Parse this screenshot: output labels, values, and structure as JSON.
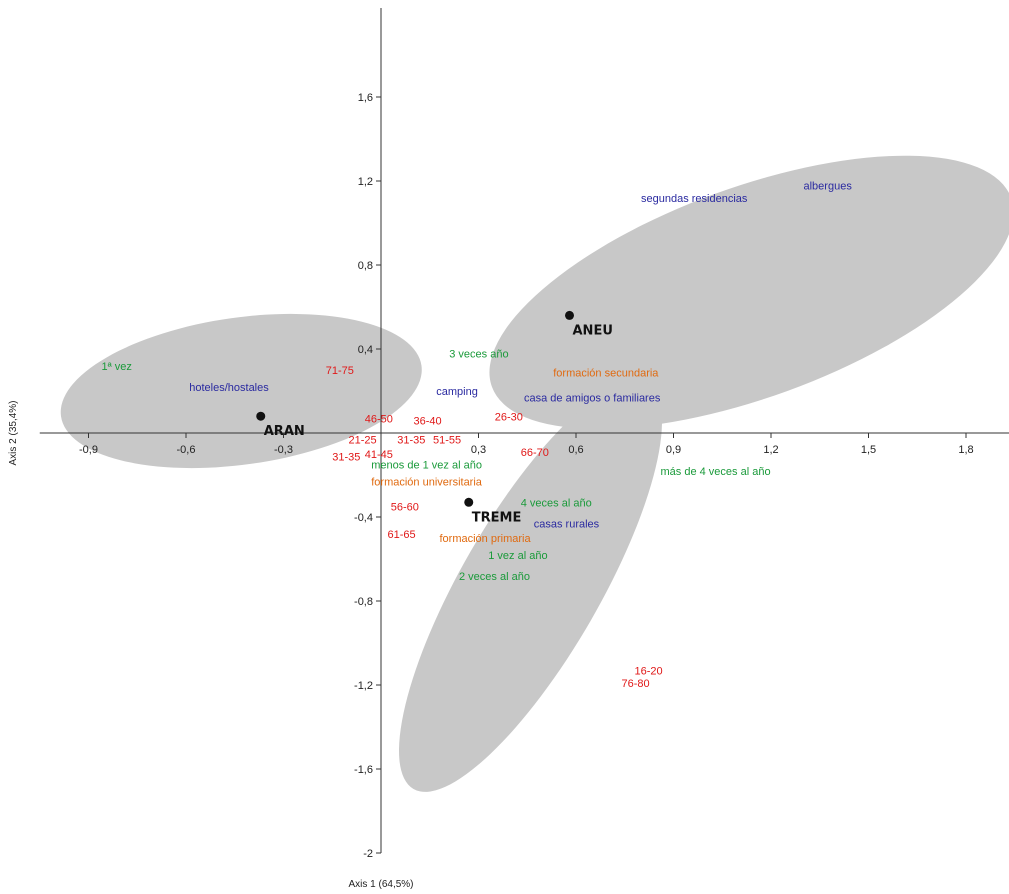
{
  "chart_data": {
    "type": "scatter",
    "title": "",
    "xlabel": "Axis 1 (64,5%)",
    "ylabel": "Axis 2 (35,4%)",
    "xlim": [
      -1.05,
      2.0
    ],
    "ylim": [
      -2.0,
      2.0
    ],
    "x_ticks": [
      {
        "v": -0.9,
        "label": "-0,9"
      },
      {
        "v": -0.6,
        "label": "-0,6"
      },
      {
        "v": -0.3,
        "label": "-0,3"
      },
      {
        "v": 0.3,
        "label": "0,3"
      },
      {
        "v": 0.6,
        "label": "0,6"
      },
      {
        "v": 0.9,
        "label": "0,9"
      },
      {
        "v": 1.2,
        "label": "1,2"
      },
      {
        "v": 1.5,
        "label": "1,5"
      },
      {
        "v": 1.8,
        "label": "1,8"
      }
    ],
    "y_ticks": [
      {
        "v": 1.6,
        "label": "1,6"
      },
      {
        "v": 1.2,
        "label": "1,2"
      },
      {
        "v": 0.8,
        "label": "0,8"
      },
      {
        "v": 0.4,
        "label": "0,4"
      },
      {
        "v": -0.4,
        "label": "-0,4"
      },
      {
        "v": -0.8,
        "label": "-0,8"
      },
      {
        "v": -1.2,
        "label": "-1,2"
      },
      {
        "v": -1.6,
        "label": "-1,6"
      },
      {
        "v": -2,
        "label": "-2"
      }
    ],
    "colors": {
      "frequency": "#1a9a3a",
      "accommodation": "#2a2aa0",
      "education": "#e06a10",
      "age": "#e01818",
      "group": "#111111",
      "ellipse": "#c8c8c8"
    },
    "groups": [
      {
        "label": "ANEU",
        "x": 0.58,
        "y": 0.56
      },
      {
        "label": "ARAN",
        "x": -0.37,
        "y": 0.08
      },
      {
        "label": "TREME",
        "x": 0.27,
        "y": -0.33
      }
    ],
    "ellipses": [
      {
        "cx": -0.43,
        "cy": 0.2,
        "rx": 0.56,
        "ry": 0.35,
        "angle": -8
      },
      {
        "cx": 1.14,
        "cy": 0.67,
        "rx": 0.85,
        "ry": 0.5,
        "angle": -20
      },
      {
        "cx": 0.46,
        "cy": -0.73,
        "rx": 0.72,
        "ry": 0.33,
        "angle": -60
      }
    ],
    "points": [
      {
        "label": "1ª vez",
        "x": -0.86,
        "y": 0.3,
        "cat": "frequency"
      },
      {
        "label": "3 veces año",
        "x": 0.21,
        "y": 0.36,
        "cat": "frequency"
      },
      {
        "label": "menos de 1 vez al año",
        "x": -0.03,
        "y": -0.17,
        "cat": "frequency"
      },
      {
        "label": "más de 4 veces al año",
        "x": 0.86,
        "y": -0.2,
        "cat": "frequency"
      },
      {
        "label": "4 veces al año",
        "x": 0.43,
        "y": -0.35,
        "cat": "frequency"
      },
      {
        "label": "1 vez al año",
        "x": 0.33,
        "y": -0.6,
        "cat": "frequency"
      },
      {
        "label": "2 veces al año",
        "x": 0.24,
        "y": -0.7,
        "cat": "frequency"
      },
      {
        "label": "segundas residencias",
        "x": 0.8,
        "y": 1.1,
        "cat": "accommodation"
      },
      {
        "label": "albergues",
        "x": 1.3,
        "y": 1.16,
        "cat": "accommodation"
      },
      {
        "label": "hoteles/hostales",
        "x": -0.59,
        "y": 0.2,
        "cat": "accommodation"
      },
      {
        "label": "camping",
        "x": 0.17,
        "y": 0.18,
        "cat": "accommodation"
      },
      {
        "label": "casa de amigos o familiares",
        "x": 0.44,
        "y": 0.15,
        "cat": "accommodation"
      },
      {
        "label": "casas rurales",
        "x": 0.47,
        "y": -0.45,
        "cat": "accommodation"
      },
      {
        "label": "formación secundaria",
        "x": 0.53,
        "y": 0.27,
        "cat": "education"
      },
      {
        "label": "formación universitaria",
        "x": -0.03,
        "y": -0.25,
        "cat": "education"
      },
      {
        "label": "formación primaria",
        "x": 0.18,
        "y": -0.52,
        "cat": "education"
      },
      {
        "label": "71-75",
        "x": -0.17,
        "y": 0.28,
        "cat": "age"
      },
      {
        "label": "46-50",
        "x": -0.05,
        "y": 0.05,
        "cat": "age"
      },
      {
        "label": "36-40",
        "x": 0.1,
        "y": 0.04,
        "cat": "age"
      },
      {
        "label": "26-30",
        "x": 0.35,
        "y": 0.06,
        "cat": "age"
      },
      {
        "label": "21-25",
        "x": -0.1,
        "y": -0.05,
        "cat": "age"
      },
      {
        "label": "31-35",
        "x": -0.15,
        "y": -0.13,
        "cat": "age"
      },
      {
        "label": "31-35",
        "x": 0.05,
        "y": -0.05,
        "cat": "age"
      },
      {
        "label": "41-45",
        "x": -0.05,
        "y": -0.12,
        "cat": "age"
      },
      {
        "label": "51-55",
        "x": 0.16,
        "y": -0.05,
        "cat": "age"
      },
      {
        "label": "66-70",
        "x": 0.43,
        "y": -0.11,
        "cat": "age"
      },
      {
        "label": "56-60",
        "x": 0.03,
        "y": -0.37,
        "cat": "age"
      },
      {
        "label": "61-65",
        "x": 0.02,
        "y": -0.5,
        "cat": "age"
      },
      {
        "label": "16-20",
        "x": 0.78,
        "y": -1.15,
        "cat": "age"
      },
      {
        "label": "76-80",
        "x": 0.74,
        "y": -1.21,
        "cat": "age"
      }
    ]
  }
}
